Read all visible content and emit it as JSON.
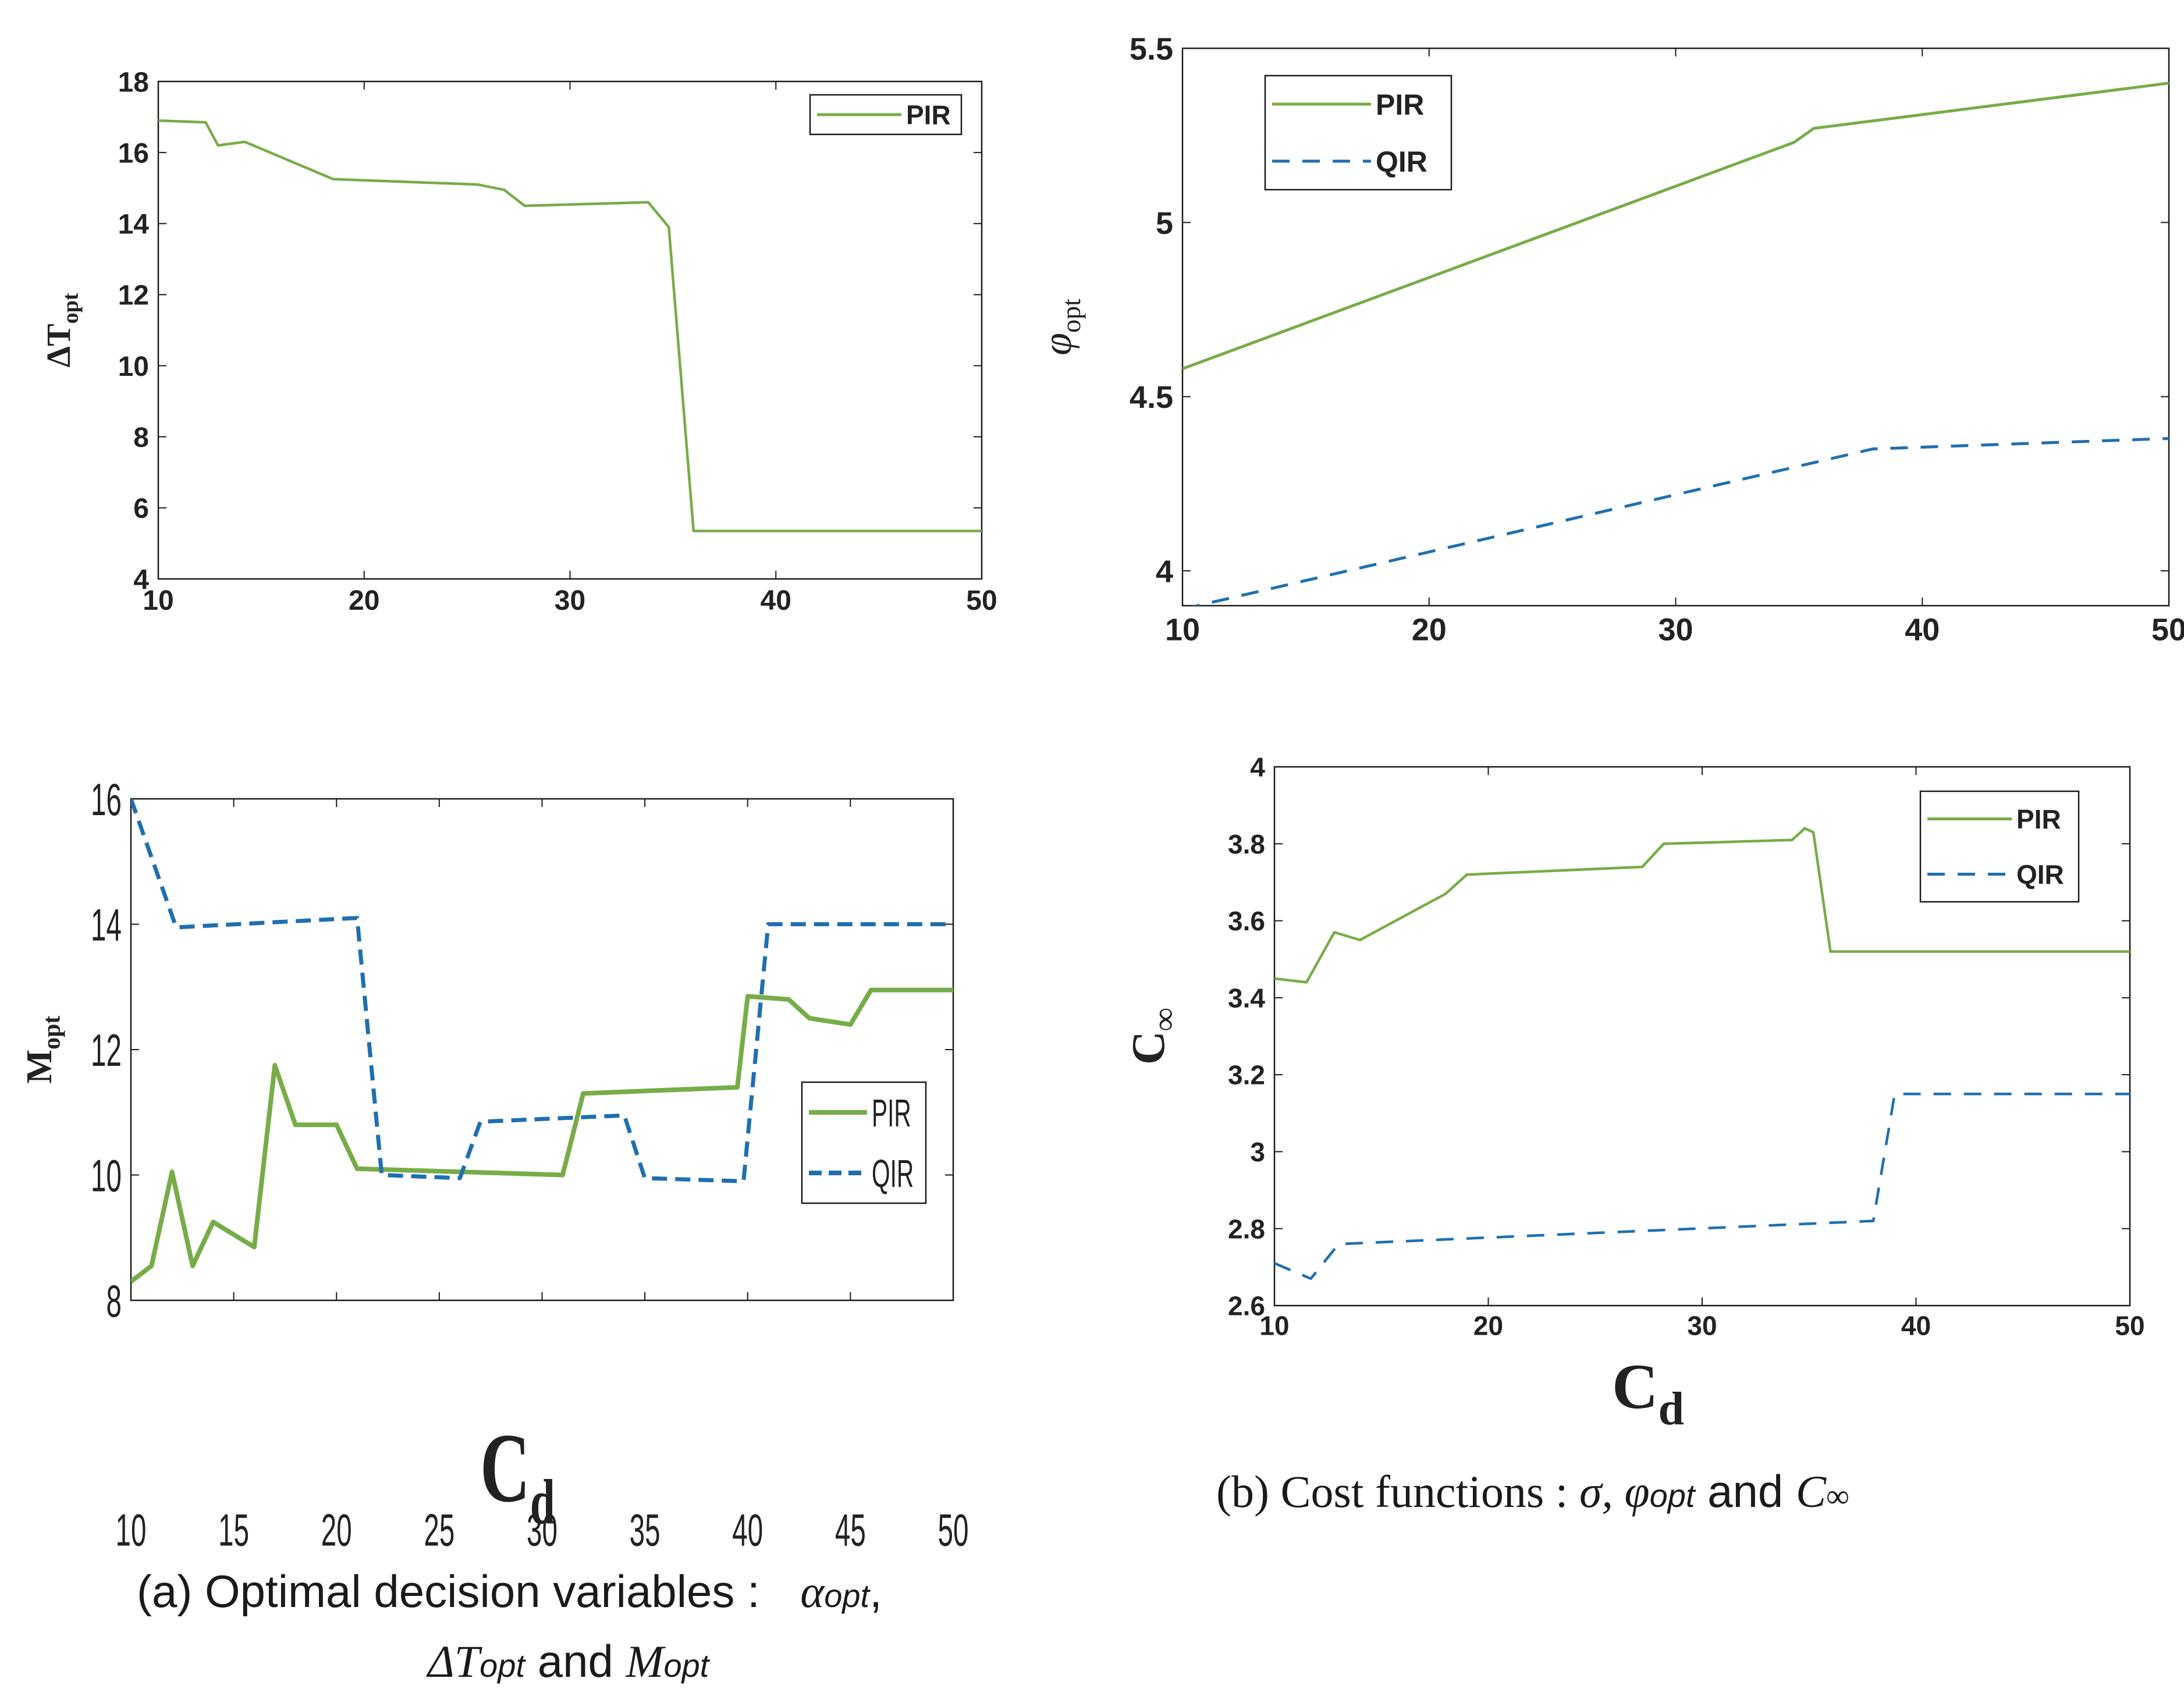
{
  "colors": {
    "pir": "#77ac48",
    "qir": "#1f6fb0",
    "axis": "#1a1a1a",
    "text": "#222222"
  },
  "chart_data": [
    {
      "id": "delta_t",
      "type": "line",
      "title": "",
      "xlabel": "",
      "ylabel": "ΔT",
      "ylabel_sub": "opt",
      "xlim": [
        10,
        50
      ],
      "ylim": [
        4,
        18
      ],
      "xticks": [
        10,
        20,
        30,
        40,
        50
      ],
      "yticks": [
        4,
        6,
        8,
        10,
        12,
        14,
        16,
        18
      ],
      "legend_position": "top-right",
      "series": [
        {
          "name": "PIR",
          "style": "solid",
          "points": [
            [
              10,
              16.9
            ],
            [
              12.3,
              16.85
            ],
            [
              12.9,
              16.2
            ],
            [
              14.2,
              16.3
            ],
            [
              18.5,
              15.25
            ],
            [
              25.5,
              15.1
            ],
            [
              26.8,
              14.95
            ],
            [
              27.8,
              14.5
            ],
            [
              33.8,
              14.6
            ],
            [
              34.8,
              13.9
            ],
            [
              36,
              5.35
            ],
            [
              50,
              5.35
            ]
          ]
        }
      ]
    },
    {
      "id": "phi",
      "type": "line",
      "title": "",
      "xlabel": "",
      "ylabel": "φ",
      "ylabel_sub": "opt",
      "xlim": [
        10,
        50
      ],
      "ylim": [
        3.9,
        5.5
      ],
      "xticks": [
        10,
        20,
        30,
        40,
        50
      ],
      "yticks": [
        4,
        4.5,
        5,
        5.5
      ],
      "legend_position": "top-left",
      "series": [
        {
          "name": "PIR",
          "style": "solid",
          "points": [
            [
              10,
              4.58
            ],
            [
              34.8,
              5.23
            ],
            [
              35.6,
              5.27
            ],
            [
              50,
              5.4
            ]
          ]
        },
        {
          "name": "QIR",
          "style": "dashed",
          "points": [
            [
              10,
              3.89
            ],
            [
              38,
              4.35
            ],
            [
              50,
              4.38
            ]
          ]
        }
      ]
    },
    {
      "id": "m_opt",
      "type": "line",
      "title": "",
      "xlabel": "C",
      "xlabel_sub": "d",
      "ylabel": "M",
      "ylabel_sub": "opt",
      "xlim": [
        10,
        50
      ],
      "ylim": [
        8,
        16
      ],
      "xticks": [
        10,
        15,
        20,
        25,
        30,
        35,
        40,
        45,
        50
      ],
      "yticks": [
        8,
        10,
        12,
        14,
        16
      ],
      "legend_position": "center-right",
      "series": [
        {
          "name": "PIR",
          "style": "solid",
          "points": [
            [
              10,
              8.3
            ],
            [
              11,
              8.55
            ],
            [
              12,
              10.05
            ],
            [
              13,
              8.55
            ],
            [
              14,
              9.25
            ],
            [
              16,
              8.85
            ],
            [
              17,
              11.75
            ],
            [
              18,
              10.8
            ],
            [
              20,
              10.8
            ],
            [
              21,
              10.1
            ],
            [
              31,
              10.0
            ],
            [
              32,
              11.3
            ],
            [
              39.5,
              11.4
            ],
            [
              40,
              12.85
            ],
            [
              42,
              12.8
            ],
            [
              43,
              12.5
            ],
            [
              45,
              12.4
            ],
            [
              46,
              12.95
            ],
            [
              50,
              12.95
            ]
          ]
        },
        {
          "name": "QIR",
          "style": "dashed",
          "points": [
            [
              10,
              16.0
            ],
            [
              12.2,
              13.95
            ],
            [
              21,
              14.1
            ],
            [
              22.2,
              10.0
            ],
            [
              26,
              9.95
            ],
            [
              27,
              10.85
            ],
            [
              34,
              10.95
            ],
            [
              35,
              9.95
            ],
            [
              39.8,
              9.9
            ],
            [
              41,
              14.0
            ],
            [
              50,
              14.0
            ]
          ]
        }
      ]
    },
    {
      "id": "c_inf",
      "type": "line",
      "title": "",
      "xlabel": "C",
      "xlabel_sub": "d",
      "ylabel": "C",
      "ylabel_sub": "∞",
      "xlim": [
        10,
        50
      ],
      "ylim": [
        2.6,
        4
      ],
      "xticks": [
        10,
        20,
        30,
        40,
        50
      ],
      "yticks": [
        2.6,
        2.8,
        3,
        3.2,
        3.4,
        3.6,
        3.8,
        4
      ],
      "legend_position": "top-right",
      "series": [
        {
          "name": "PIR",
          "style": "solid",
          "points": [
            [
              10,
              3.45
            ],
            [
              11.5,
              3.44
            ],
            [
              12.8,
              3.57
            ],
            [
              14,
              3.55
            ],
            [
              18,
              3.67
            ],
            [
              19,
              3.72
            ],
            [
              27.2,
              3.74
            ],
            [
              28.2,
              3.8
            ],
            [
              34.2,
              3.81
            ],
            [
              34.8,
              3.84
            ],
            [
              35.2,
              3.83
            ],
            [
              36,
              3.52
            ],
            [
              50,
              3.52
            ]
          ]
        },
        {
          "name": "QIR",
          "style": "dashed",
          "points": [
            [
              10,
              2.71
            ],
            [
              11.7,
              2.67
            ],
            [
              13,
              2.76
            ],
            [
              38,
              2.82
            ],
            [
              39,
              3.15
            ],
            [
              50,
              3.15
            ]
          ]
        }
      ]
    }
  ],
  "captions": {
    "a_line1_prefix": "(a)  Optimal decision variables :",
    "a_line1_var": "α",
    "a_line1_var_sub": "opt",
    "a_line1_comma": ",",
    "a_line2_var1": "ΔT",
    "a_line2_var1_sub": "opt",
    "a_line2_and": " and ",
    "a_line2_var2": "M",
    "a_line2_var2_sub": "opt",
    "b_prefix": "(b) Cost functions : ",
    "b_sigma": "σ,",
    "b_phi": " φ",
    "b_phi_sub": "opt",
    "b_and": " and ",
    "b_c": "C",
    "b_c_sub": "∞"
  }
}
